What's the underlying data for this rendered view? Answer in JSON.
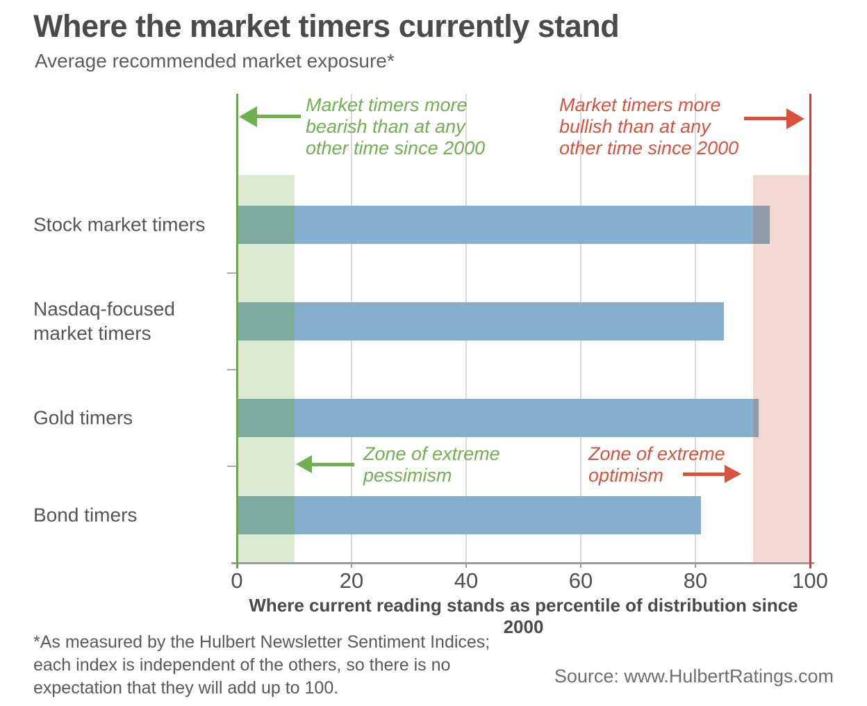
{
  "title": "Where the market timers currently stand",
  "subtitle": "Average recommended market exposure*",
  "chart_data": {
    "type": "bar",
    "orientation": "horizontal",
    "categories": [
      "Stock market timers",
      "Nasdaq-focused market timers",
      "Gold timers",
      "Bond timers"
    ],
    "values": [
      93,
      85,
      91,
      81
    ],
    "xlabel": "Where current reading stands as percentile of distribution since 2000",
    "xlim": [
      0,
      100
    ],
    "xticks": [
      0,
      20,
      40,
      60,
      80,
      100
    ],
    "grid": "vertical gridlines at 20, 40, 60, 80",
    "legend": "none",
    "zones": [
      {
        "name": "extreme-pessimism",
        "from": 0,
        "to": 10,
        "color": "#dcead2"
      },
      {
        "name": "extreme-optimism",
        "from": 90,
        "to": 100,
        "color": "#f2d8d2"
      }
    ],
    "annotations": {
      "bearish": "Market timers more\nbearish than at any\nother time since 2000",
      "bullish": "Market timers more\nbullish than at any\nother time since 2000",
      "pessimism": "Zone of extreme\npessimism",
      "optimism": "Zone of extreme\noptimism"
    },
    "colors": {
      "bar": "#85afcc",
      "bar_over_green": "#7dab9f",
      "bar_over_pink": "#8f9aab",
      "green": "#6fb04f",
      "green_line": "#6aa84f",
      "red": "#d9523c",
      "red_line": "#d43b30",
      "grid": "#dadada",
      "axis": "#9b9b9b"
    }
  },
  "footnote": "*As measured by the Hulbert Newsletter Sentiment Indices;\neach index is independent of the others, so there is no\nexpectation that they will add up to 100.",
  "source": "Source: www.HulbertRatings.com"
}
